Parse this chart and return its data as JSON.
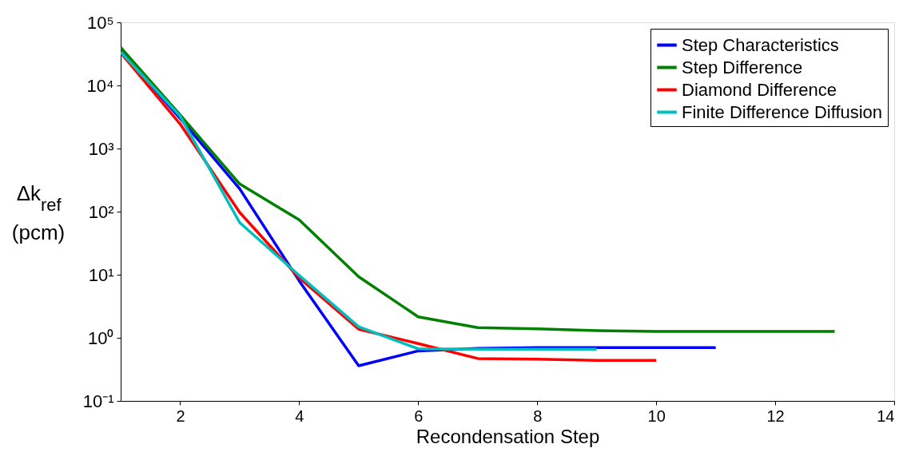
{
  "chart_data": {
    "type": "line",
    "xlabel": "Recondensation Step",
    "ylabel": "Δk$_{ref}$ (pcm)",
    "x": [
      1,
      2,
      3,
      4,
      5,
      6,
      7,
      8,
      9,
      10,
      11,
      12,
      13
    ],
    "series": [
      {
        "name": "Step Characteristics",
        "color": "#0000ff",
        "values": [
          35000,
          3000,
          230,
          8,
          0.36,
          0.62,
          0.68,
          0.7,
          0.7,
          0.7,
          0.7,
          null,
          null
        ]
      },
      {
        "name": "Step Difference",
        "color": "#008000",
        "values": [
          40000,
          3400,
          275,
          74,
          9.3,
          2.15,
          1.45,
          1.39,
          1.3,
          1.26,
          1.26,
          1.26,
          1.26
        ]
      },
      {
        "name": "Diamond Difference",
        "color": "#ff0000",
        "values": [
          33000,
          2450,
          97,
          8.9,
          1.37,
          0.81,
          0.47,
          0.46,
          0.44,
          0.44,
          null,
          null,
          null
        ]
      },
      {
        "name": "Finite Difference Diffusion",
        "color": "#00bfbf",
        "values": [
          34000,
          3250,
          67,
          9.8,
          1.5,
          0.67,
          0.66,
          0.66,
          0.66,
          null,
          null,
          null,
          null
        ]
      }
    ],
    "xlim": [
      1,
      14
    ],
    "xticks": [
      2,
      4,
      6,
      8,
      10,
      12,
      14
    ],
    "ylim": [
      0.1,
      100000
    ],
    "yticks": [
      {
        "value": 0.1,
        "label": "10⁻¹"
      },
      {
        "value": 1,
        "label": "10⁰"
      },
      {
        "value": 10,
        "label": "10¹"
      },
      {
        "value": 100,
        "label": "10²"
      },
      {
        "value": 1000,
        "label": "10³"
      },
      {
        "value": 10000,
        "label": "10⁴"
      },
      {
        "value": 100000,
        "label": "10⁵"
      }
    ],
    "log": true,
    "grid": false,
    "legend": "top right",
    "line_style": "solid",
    "marker": "none"
  }
}
